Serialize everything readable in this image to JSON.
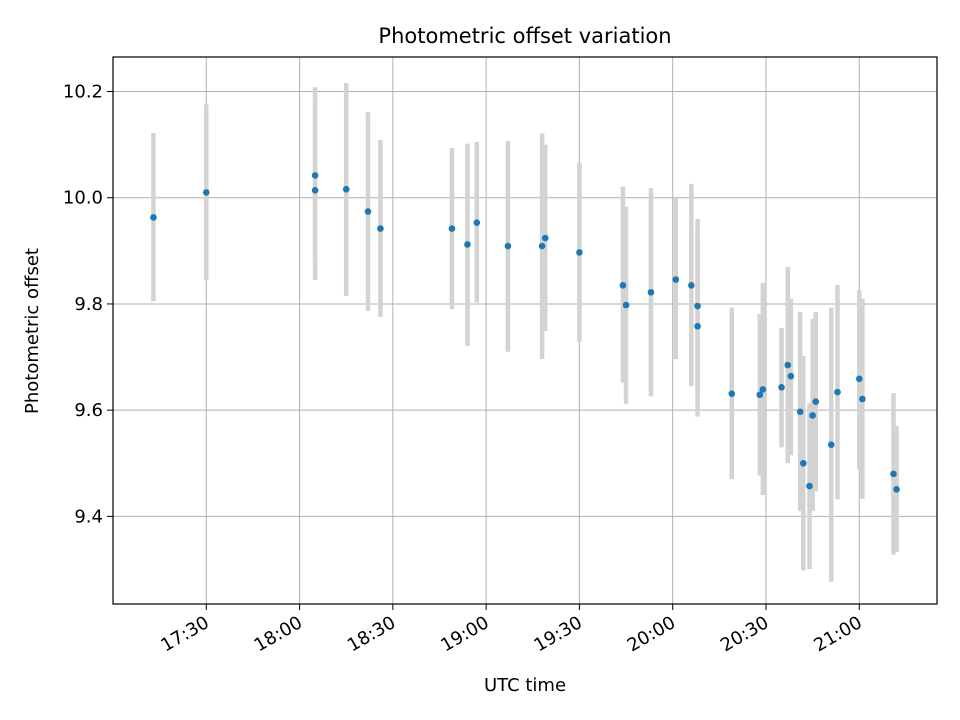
{
  "chart_data": {
    "type": "scatter",
    "title": "Photometric offset variation",
    "xlabel": "UTC time",
    "ylabel": "Photometric offset",
    "x_ticks": [
      "17:30",
      "18:00",
      "18:30",
      "19:00",
      "19:30",
      "20:00",
      "20:30",
      "21:00"
    ],
    "y_ticks": [
      "9.4",
      "9.6",
      "9.8",
      "10.0",
      "10.2"
    ],
    "xlim": [
      "17:00",
      "21:25"
    ],
    "ylim": [
      9.235,
      10.265
    ],
    "grid": true,
    "colors": {
      "marker": "#1f77b4",
      "errorbar": "#d3d3d3",
      "grid": "#b0b0b0"
    },
    "series": [
      {
        "points": [
          {
            "x": "17:13",
            "y": 9.963,
            "err_low": 9.805,
            "err_high": 10.122
          },
          {
            "x": "17:30",
            "y": 10.01,
            "err_low": 9.845,
            "err_high": 10.176
          },
          {
            "x": "18:05",
            "y": 10.014,
            "err_low": 9.845,
            "err_high": 10.184
          },
          {
            "x": "18:05",
            "y": 10.042,
            "err_low": 9.879,
            "err_high": 10.208
          },
          {
            "x": "18:15",
            "y": 10.016,
            "err_low": 9.815,
            "err_high": 10.216
          },
          {
            "x": "18:22",
            "y": 9.974,
            "err_low": 9.787,
            "err_high": 10.161
          },
          {
            "x": "18:26",
            "y": 9.942,
            "err_low": 9.776,
            "err_high": 10.109
          },
          {
            "x": "18:49",
            "y": 9.942,
            "err_low": 9.79,
            "err_high": 10.094
          },
          {
            "x": "18:54",
            "y": 9.912,
            "err_low": 9.721,
            "err_high": 10.102
          },
          {
            "x": "18:57",
            "y": 9.953,
            "err_low": 9.803,
            "err_high": 10.105
          },
          {
            "x": "19:07",
            "y": 9.909,
            "err_low": 9.71,
            "err_high": 10.107
          },
          {
            "x": "19:18",
            "y": 9.909,
            "err_low": 9.696,
            "err_high": 10.121
          },
          {
            "x": "19:19",
            "y": 9.924,
            "err_low": 9.749,
            "err_high": 10.1
          },
          {
            "x": "19:30",
            "y": 9.897,
            "err_low": 9.728,
            "err_high": 10.066
          },
          {
            "x": "19:44",
            "y": 9.835,
            "err_low": 9.652,
            "err_high": 10.021
          },
          {
            "x": "19:45",
            "y": 9.798,
            "err_low": 9.612,
            "err_high": 9.983
          },
          {
            "x": "19:53",
            "y": 9.822,
            "err_low": 9.626,
            "err_high": 10.018
          },
          {
            "x": "20:01",
            "y": 9.846,
            "err_low": 9.696,
            "err_high": 10.0
          },
          {
            "x": "20:06",
            "y": 9.835,
            "err_low": 9.645,
            "err_high": 10.026
          },
          {
            "x": "20:08",
            "y": 9.796,
            "err_low": 9.633,
            "err_high": 9.96
          },
          {
            "x": "20:08",
            "y": 9.758,
            "err_low": 9.588,
            "err_high": 9.928
          },
          {
            "x": "20:19",
            "y": 9.631,
            "err_low": 9.47,
            "err_high": 9.793
          },
          {
            "x": "20:28",
            "y": 9.629,
            "err_low": 9.477,
            "err_high": 9.781
          },
          {
            "x": "20:29",
            "y": 9.639,
            "err_low": 9.44,
            "err_high": 9.84
          },
          {
            "x": "20:35",
            "y": 9.643,
            "err_low": 9.53,
            "err_high": 9.755
          },
          {
            "x": "20:37",
            "y": 9.685,
            "err_low": 9.5,
            "err_high": 9.87
          },
          {
            "x": "20:38",
            "y": 9.664,
            "err_low": 9.515,
            "err_high": 9.81
          },
          {
            "x": "20:41",
            "y": 9.597,
            "err_low": 9.41,
            "err_high": 9.785
          },
          {
            "x": "20:42",
            "y": 9.5,
            "err_low": 9.298,
            "err_high": 9.702
          },
          {
            "x": "20:44",
            "y": 9.457,
            "err_low": 9.301,
            "err_high": 9.613
          },
          {
            "x": "20:45",
            "y": 9.59,
            "err_low": 9.41,
            "err_high": 9.772
          },
          {
            "x": "20:46",
            "y": 9.616,
            "err_low": 9.447,
            "err_high": 9.785
          },
          {
            "x": "20:51",
            "y": 9.535,
            "err_low": 9.277,
            "err_high": 9.793
          },
          {
            "x": "20:53",
            "y": 9.634,
            "err_low": 9.432,
            "err_high": 9.836
          },
          {
            "x": "21:00",
            "y": 9.659,
            "err_low": 9.489,
            "err_high": 9.826
          },
          {
            "x": "21:01",
            "y": 9.621,
            "err_low": 9.433,
            "err_high": 9.81
          },
          {
            "x": "21:11",
            "y": 9.48,
            "err_low": 9.328,
            "err_high": 9.632
          },
          {
            "x": "21:12",
            "y": 9.451,
            "err_low": 9.333,
            "err_high": 9.57
          }
        ]
      }
    ]
  }
}
